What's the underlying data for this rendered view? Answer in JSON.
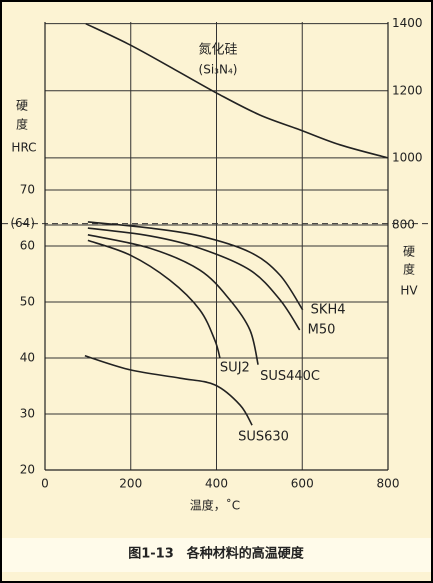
{
  "chart_data": {
    "type": "line",
    "title": "图1-13　各种材料的高温硬度",
    "x_label": "温度，˚C",
    "y_label": [
      "硬",
      "度",
      "HRC"
    ],
    "y2_label": [
      "硬",
      "度",
      "HV"
    ],
    "xlim": [
      0,
      800
    ],
    "xticks": [
      0,
      200,
      400,
      600,
      800
    ],
    "ylim": [
      20,
      100
    ],
    "yticks": [
      20,
      30,
      40,
      50,
      60,
      {
        "value": 64,
        "label": "(64)"
      },
      70
    ],
    "y2lim": [
      70,
      1405
    ],
    "y2ticks": [
      800,
      1000,
      1200,
      1400
    ],
    "grid": true,
    "series": [
      {
        "name": "氮化硅",
        "sublabel": "(Si₃N₄)",
        "color": "#222",
        "axis": "y2",
        "x": [
          95,
          198,
          303,
          408,
          501,
          594,
          688,
          800
        ],
        "values": [
          1400,
          1337,
          1263,
          1188,
          1128,
          1084,
          1039,
          1000
        ]
      },
      {
        "name": "SKH4",
        "color": "#222",
        "x": [
          100,
          245,
          361,
          478,
          548,
          601
        ],
        "values": [
          64.3,
          63.2,
          61.8,
          58.9,
          54.8,
          48.6
        ]
      },
      {
        "name": "M50",
        "color": "#222",
        "x": [
          100,
          245,
          361,
          478,
          548,
          594
        ],
        "values": [
          63.2,
          61.8,
          59.6,
          55.7,
          50.4,
          45
        ]
      },
      {
        "name": "SUS440C",
        "color": "#222",
        "x": [
          100,
          245,
          361,
          431,
          478,
          497
        ],
        "values": [
          62,
          59.6,
          55.7,
          50.4,
          45,
          38.8
        ]
      },
      {
        "name": "SUJ2",
        "color": "#222",
        "x": [
          100,
          198,
          291,
          361,
          396,
          408
        ],
        "values": [
          61,
          58.4,
          53.9,
          48.6,
          43.2,
          40
        ]
      },
      {
        "name": "SUS630",
        "color": "#222",
        "x": [
          93,
          198,
          315,
          396,
          455,
          483
        ],
        "values": [
          40.4,
          37.9,
          36.4,
          35.2,
          31.6,
          28
        ]
      }
    ]
  }
}
